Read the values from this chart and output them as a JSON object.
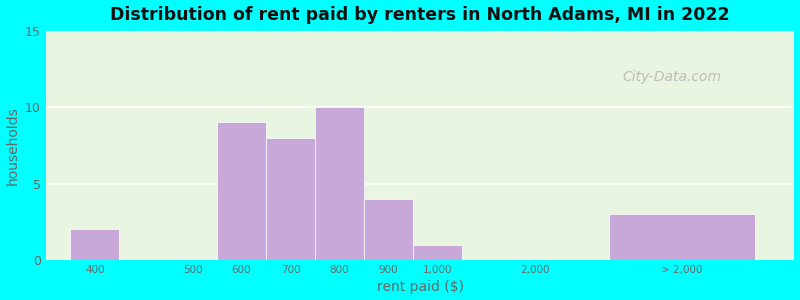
{
  "title": "Distribution of rent paid by renters in North Adams, MI in 2022",
  "xlabel": "rent paid ($)",
  "ylabel": "households",
  "bar_color": "#c8a8d8",
  "outer_bg": "#00ffff",
  "plot_bg": "#e8f5e0",
  "ylim": [
    0,
    15
  ],
  "yticks": [
    0,
    5,
    10,
    15
  ],
  "bar_heights": [
    2,
    0,
    9,
    8,
    10,
    4,
    1,
    0,
    3
  ],
  "all_labels": [
    "400",
    "500",
    "600",
    "700",
    "800",
    "900",
    "1,000",
    "2,000",
    "> 2,000"
  ],
  "positions": [
    0,
    2,
    3,
    4,
    5,
    6,
    7,
    9,
    11
  ],
  "widths": [
    1,
    1,
    1,
    1,
    1,
    1,
    1,
    1,
    3
  ],
  "watermark": "City-Data.com"
}
